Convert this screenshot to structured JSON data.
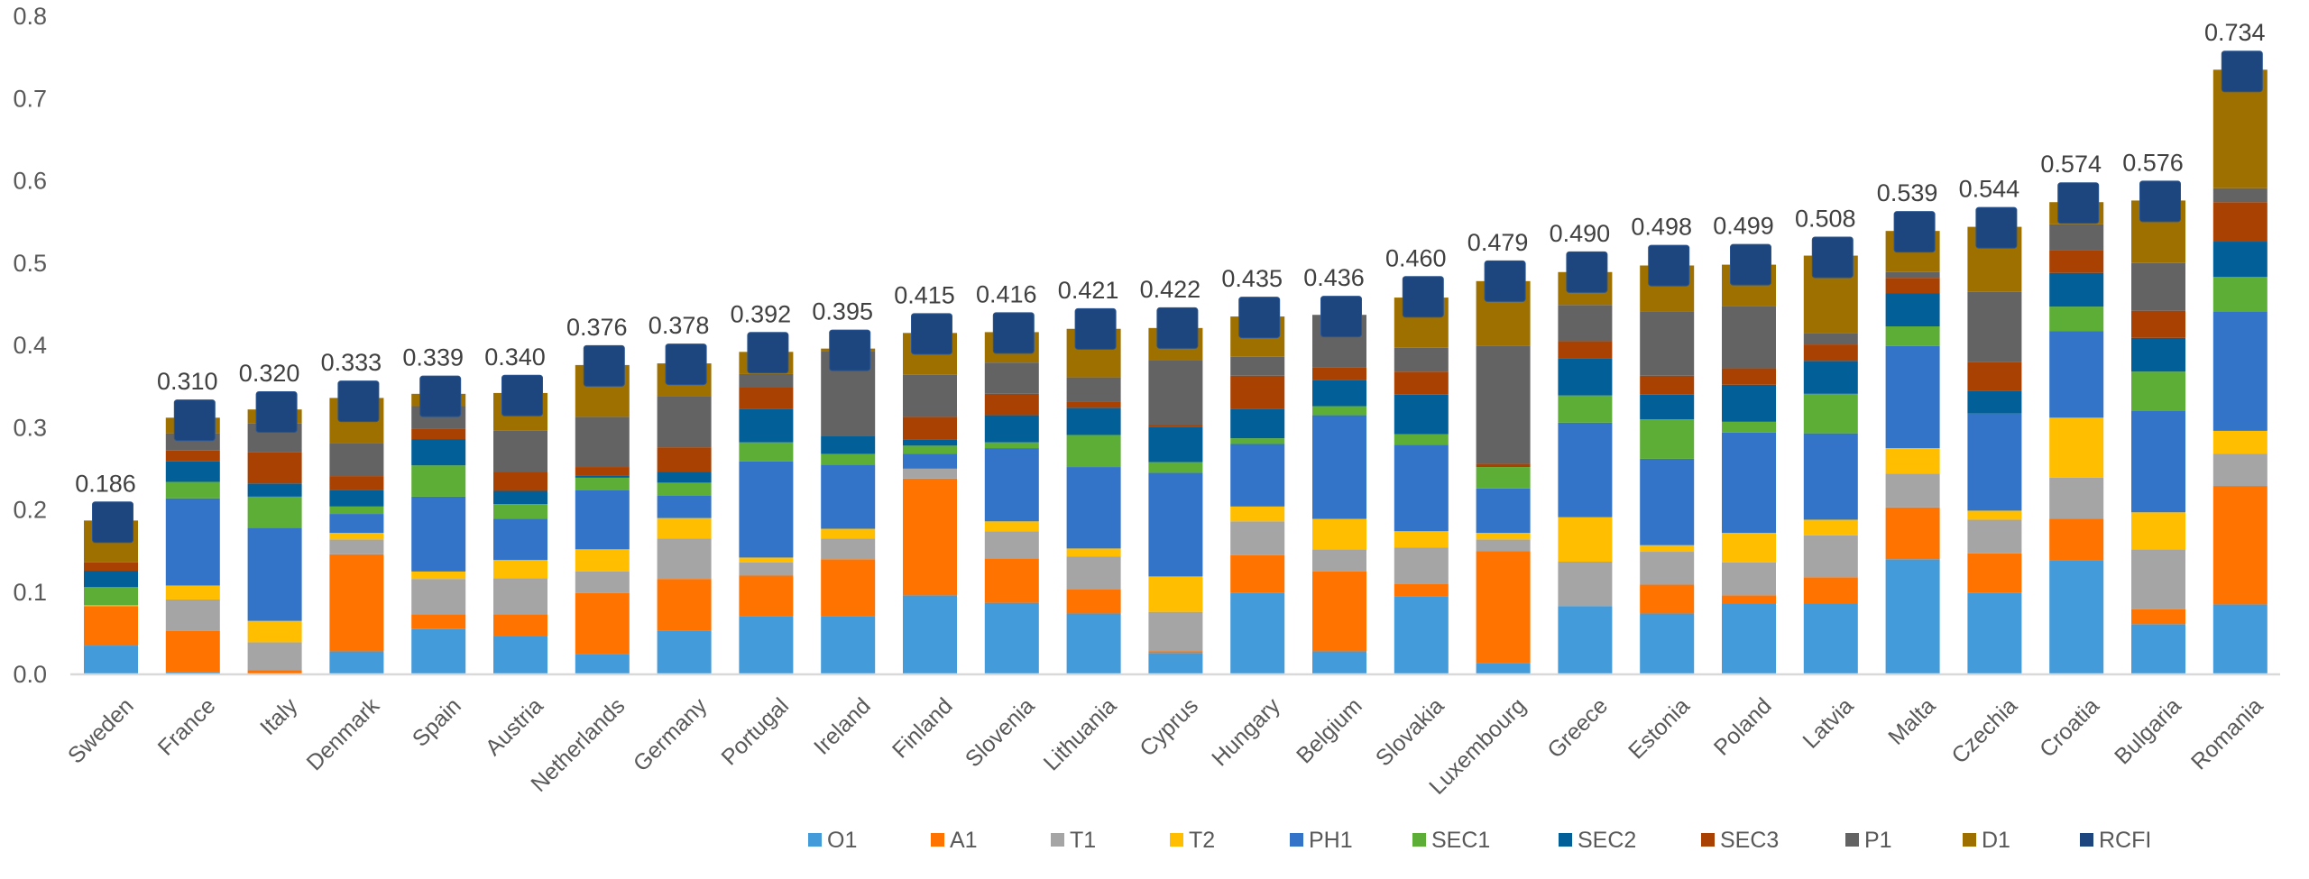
{
  "chart_data": {
    "type": "bar",
    "stacked": true,
    "title": "",
    "xlabel": "",
    "ylabel": "",
    "ylim": [
      0,
      0.8
    ],
    "yticks": [
      "0.0",
      "0.1",
      "0.2",
      "0.3",
      "0.4",
      "0.5",
      "0.6",
      "0.7",
      "0.8"
    ],
    "grid": false,
    "legend_position": "bottom-right",
    "categories": [
      "Sweden",
      "France",
      "Italy",
      "Denmark",
      "Spain",
      "Austria",
      "Netherlands",
      "Germany",
      "Portugal",
      "Ireland",
      "Finland",
      "Slovenia",
      "Lithuania",
      "Cyprus",
      "Hungary",
      "Belgium",
      "Slovakia",
      "Luxembourg",
      "Greece",
      "Estonia",
      "Poland",
      "Latvia",
      "Malta",
      "Czechia",
      "Croatia",
      "Bulgaria",
      "Romania"
    ],
    "series": [
      {
        "name": "O1",
        "color": "#449BDA",
        "values": [
          0.035,
          0.003,
          0.0,
          0.028,
          0.055,
          0.047,
          0.025,
          0.053,
          0.071,
          0.071,
          0.096,
          0.087,
          0.074,
          0.026,
          0.099,
          0.028,
          0.095,
          0.014,
          0.083,
          0.074,
          0.086,
          0.086,
          0.14,
          0.099,
          0.139,
          0.061,
          0.085
        ]
      },
      {
        "name": "A1",
        "color": "#FF7300",
        "values": [
          0.048,
          0.05,
          0.005,
          0.118,
          0.018,
          0.026,
          0.074,
          0.063,
          0.049,
          0.069,
          0.142,
          0.054,
          0.029,
          0.002,
          0.046,
          0.097,
          0.015,
          0.136,
          0.0,
          0.035,
          0.01,
          0.032,
          0.063,
          0.048,
          0.05,
          0.018,
          0.144
        ]
      },
      {
        "name": "T1",
        "color": "#A5A5A5",
        "values": [
          0.0,
          0.038,
          0.034,
          0.018,
          0.043,
          0.044,
          0.026,
          0.049,
          0.016,
          0.025,
          0.012,
          0.033,
          0.04,
          0.048,
          0.041,
          0.027,
          0.044,
          0.014,
          0.054,
          0.04,
          0.04,
          0.051,
          0.041,
          0.041,
          0.05,
          0.073,
          0.039
        ]
      },
      {
        "name": "T2",
        "color": "#FFBE00",
        "values": [
          0.001,
          0.017,
          0.026,
          0.008,
          0.009,
          0.022,
          0.027,
          0.025,
          0.006,
          0.012,
          0.0,
          0.012,
          0.01,
          0.043,
          0.018,
          0.037,
          0.02,
          0.008,
          0.054,
          0.008,
          0.036,
          0.019,
          0.031,
          0.011,
          0.073,
          0.045,
          0.028
        ]
      },
      {
        "name": "PH1",
        "color": "#3374C9",
        "values": [
          0.0,
          0.106,
          0.113,
          0.023,
          0.091,
          0.05,
          0.072,
          0.027,
          0.117,
          0.078,
          0.018,
          0.089,
          0.099,
          0.126,
          0.076,
          0.126,
          0.105,
          0.054,
          0.115,
          0.105,
          0.122,
          0.105,
          0.124,
          0.118,
          0.105,
          0.123,
          0.145
        ]
      },
      {
        "name": "SEC1",
        "color": "#5DAE36",
        "values": [
          0.022,
          0.02,
          0.038,
          0.009,
          0.038,
          0.018,
          0.015,
          0.016,
          0.023,
          0.013,
          0.01,
          0.007,
          0.039,
          0.013,
          0.007,
          0.011,
          0.013,
          0.026,
          0.033,
          0.048,
          0.013,
          0.048,
          0.024,
          0.0,
          0.03,
          0.048,
          0.042
        ]
      },
      {
        "name": "SEC2",
        "color": "#035F98",
        "values": [
          0.02,
          0.025,
          0.016,
          0.02,
          0.032,
          0.016,
          0.003,
          0.013,
          0.041,
          0.022,
          0.007,
          0.033,
          0.033,
          0.043,
          0.036,
          0.032,
          0.048,
          0.0,
          0.045,
          0.03,
          0.045,
          0.04,
          0.04,
          0.028,
          0.041,
          0.041,
          0.043
        ]
      },
      {
        "name": "SEC3",
        "color": "#A84101",
        "values": [
          0.01,
          0.013,
          0.038,
          0.017,
          0.013,
          0.023,
          0.01,
          0.03,
          0.026,
          0.0,
          0.028,
          0.026,
          0.007,
          0.002,
          0.04,
          0.015,
          0.028,
          0.004,
          0.021,
          0.023,
          0.02,
          0.02,
          0.019,
          0.035,
          0.028,
          0.033,
          0.048
        ]
      },
      {
        "name": "P1",
        "color": "#636363",
        "values": [
          0.0,
          0.021,
          0.035,
          0.04,
          0.027,
          0.05,
          0.061,
          0.062,
          0.016,
          0.103,
          0.051,
          0.038,
          0.03,
          0.079,
          0.023,
          0.064,
          0.029,
          0.143,
          0.044,
          0.078,
          0.076,
          0.014,
          0.007,
          0.085,
          0.031,
          0.058,
          0.017
        ]
      },
      {
        "name": "D1",
        "color": "#9E7000",
        "values": [
          0.051,
          0.019,
          0.017,
          0.055,
          0.015,
          0.046,
          0.063,
          0.04,
          0.027,
          0.003,
          0.051,
          0.037,
          0.059,
          0.039,
          0.049,
          0.0,
          0.061,
          0.079,
          0.04,
          0.056,
          0.05,
          0.094,
          0.05,
          0.079,
          0.027,
          0.076,
          0.144
        ]
      }
    ],
    "marker_series": {
      "name": "RCFI",
      "color": "#1D467F",
      "marker": "square",
      "values": [
        0.186,
        0.31,
        0.32,
        0.333,
        0.339,
        0.34,
        0.376,
        0.378,
        0.392,
        0.395,
        0.415,
        0.416,
        0.421,
        0.422,
        0.435,
        0.436,
        0.46,
        0.479,
        0.49,
        0.498,
        0.499,
        0.508,
        0.539,
        0.544,
        0.574,
        0.576,
        0.734
      ]
    },
    "data_labels": [
      "0.186",
      "0.310",
      "0.320",
      "0.333",
      "0.339",
      "0.340",
      "0.376",
      "0.378",
      "0.392",
      "0.395",
      "0.415",
      "0.416",
      "0.421",
      "0.422",
      "0.435",
      "0.436",
      "0.460",
      "0.479",
      "0.490",
      "0.498",
      "0.499",
      "0.508",
      "0.539",
      "0.544",
      "0.574",
      "0.576",
      "0.734"
    ],
    "legend": [
      "O1",
      "A1",
      "T1",
      "T2",
      "PH1",
      "SEC1",
      "SEC2",
      "SEC3",
      "P1",
      "D1",
      "RCFI"
    ]
  }
}
